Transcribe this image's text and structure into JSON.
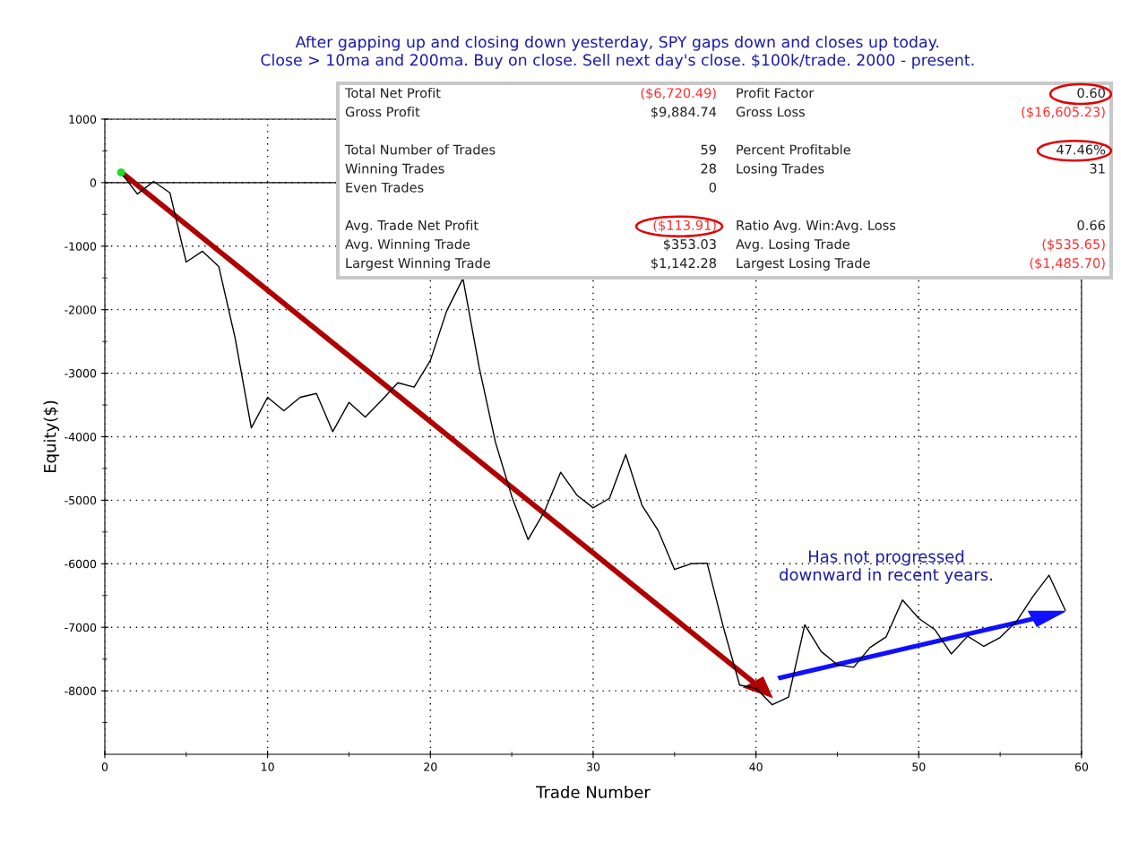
{
  "chart_data": {
    "type": "line",
    "title": "After gapping up and closing down yesterday, SPY gaps down and closes up today.\nClose > 10ma and 200ma. Buy on close. Sell next day's close. $100k/trade. 2000 - present.",
    "xlabel": "Trade Number",
    "ylabel": "Equity($)",
    "x": [
      1,
      2,
      3,
      4,
      5,
      6,
      7,
      8,
      9,
      10,
      11,
      12,
      13,
      14,
      15,
      16,
      17,
      18,
      19,
      20,
      21,
      22,
      23,
      24,
      25,
      26,
      27,
      28,
      29,
      30,
      31,
      32,
      33,
      34,
      35,
      36,
      37,
      38,
      39,
      40,
      41,
      42,
      43,
      44,
      45,
      46,
      47,
      48,
      49,
      50,
      51,
      52,
      53,
      54,
      55,
      56,
      57,
      58,
      59
    ],
    "series": [
      {
        "color": "#000000",
        "values": [
          160,
          -180,
          20,
          -160,
          -1250,
          -1080,
          -1320,
          -2440,
          -3860,
          -3380,
          -3590,
          -3380,
          -3320,
          -3920,
          -3460,
          -3690,
          -3430,
          -3150,
          -3220,
          -2800,
          -2020,
          -1510,
          -2910,
          -4090,
          -4940,
          -5620,
          -5180,
          -4560,
          -4920,
          -5120,
          -4970,
          -4280,
          -5080,
          -5480,
          -6090,
          -6000,
          -5990,
          -7000,
          -7910,
          -7960,
          -8220,
          -8100,
          -6960,
          -7380,
          -7590,
          -7630,
          -7320,
          -7150,
          -6570,
          -6860,
          -7040,
          -7420,
          -7140,
          -7300,
          -7160,
          -6910,
          -6520,
          -6180,
          -6730
        ]
      },
      {
        "type": "scatter",
        "color": "#22dd22",
        "x": [
          1
        ],
        "values": [
          160
        ],
        "marker": "circle"
      }
    ],
    "xlim": [
      0,
      60
    ],
    "xticks": [
      0,
      10,
      20,
      30,
      40,
      50,
      60
    ],
    "ylim": [
      -9000,
      1000
    ],
    "yticks": [
      -8000,
      -7000,
      -6000,
      -5000,
      -4000,
      -3000,
      -2000,
      -1000,
      0,
      1000
    ],
    "grid": true,
    "marker": "none",
    "line_style": "solid",
    "ref_lines": [
      {
        "axis": "y",
        "value": 0,
        "color": "#000000",
        "line_style": "solid"
      }
    ],
    "annotations": [
      "Has not progressed\ndownward in recent years.",
      "Total Net Profit",
      "($6,720.49)",
      "Profit Factor",
      "0.60",
      "Gross Profit",
      "$9,884.74",
      "Gross Loss",
      "($16,605.23)",
      "Total Number of Trades",
      "59",
      "Percent Profitable",
      "47.46%",
      "Winning Trades",
      "28",
      "Losing Trades",
      "31",
      "Even Trades",
      "0",
      "Avg. Trade Net Profit",
      "($113.91)",
      "Ratio Avg. Win:Avg. Loss",
      "0.66",
      "Avg. Winning Trade",
      "$353.03",
      "Avg. Losing Trade",
      "($535.65)",
      "Largest Winning Trade",
      "$1,142.28",
      "Largest Losing Trade",
      "($1,485.70)"
    ]
  }
}
